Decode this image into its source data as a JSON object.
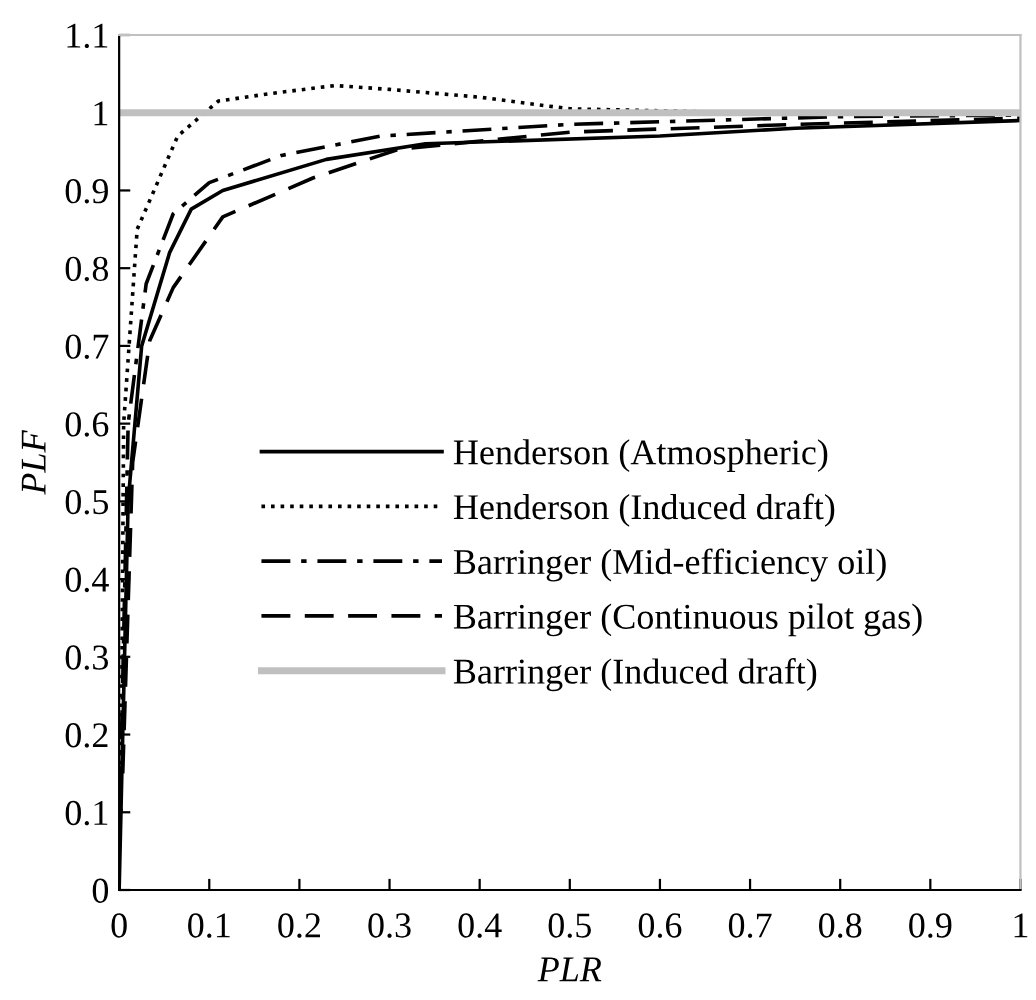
{
  "chart_data": {
    "type": "line",
    "xlabel": "PLR",
    "ylabel": "PLF",
    "xlim": [
      0,
      1
    ],
    "ylim": [
      0,
      1.1
    ],
    "xticks": [
      0,
      0.1,
      0.2,
      0.3,
      0.4,
      0.5,
      0.6,
      0.7,
      0.8,
      0.9,
      1
    ],
    "yticks": [
      0,
      0.1,
      0.2,
      0.3,
      0.4,
      0.5,
      0.6,
      0.7,
      0.8,
      0.9,
      1,
      1.1
    ],
    "grid": false,
    "legend": "center",
    "marker": "none",
    "series": [
      {
        "name": "Henderson (Atmospheric)",
        "color": "#000000",
        "line_style": "solid",
        "x": [
          0,
          0.01,
          0.025,
          0.056,
          0.08,
          0.115,
          0.23,
          0.34,
          0.6,
          0.75,
          1
        ],
        "values": [
          0,
          0.5,
          0.7,
          0.82,
          0.876,
          0.9,
          0.94,
          0.96,
          0.97,
          0.98,
          0.99
        ]
      },
      {
        "name": "Henderson (Induced draft)",
        "color": "#000000",
        "line_style": "dotted",
        "x": [
          0.002,
          0.005,
          0.02,
          0.065,
          0.11,
          0.17,
          0.24,
          0.3,
          0.4,
          0.5,
          0.7,
          1
        ],
        "values": [
          0.1,
          0.6,
          0.85,
          0.97,
          1.015,
          1.025,
          1.035,
          1.03,
          1.02,
          1.005,
          1.0,
          1.0
        ]
      },
      {
        "name": "Barringer (Mid-efficiency oil)",
        "color": "#000000",
        "line_style": "dashdot",
        "x": [
          0,
          0.01,
          0.03,
          0.06,
          0.1,
          0.18,
          0.29,
          0.5,
          0.8,
          1
        ],
        "values": [
          0.05,
          0.6,
          0.78,
          0.87,
          0.91,
          0.945,
          0.97,
          0.985,
          0.995,
          0.997
        ]
      },
      {
        "name": "Barringer (Continuous pilot gas)",
        "color": "#000000",
        "line_style": "dashed",
        "x": [
          0.004,
          0.015,
          0.034,
          0.06,
          0.115,
          0.215,
          0.31,
          0.5,
          0.75,
          1
        ],
        "values": [
          0.15,
          0.55,
          0.707,
          0.775,
          0.866,
          0.916,
          0.953,
          0.975,
          0.985,
          0.993
        ]
      },
      {
        "name": "Barringer (Induced draft)",
        "color": "#c0c0c0",
        "line_style": "solid",
        "x": [
          0,
          1
        ],
        "values": [
          1,
          1
        ]
      }
    ]
  }
}
